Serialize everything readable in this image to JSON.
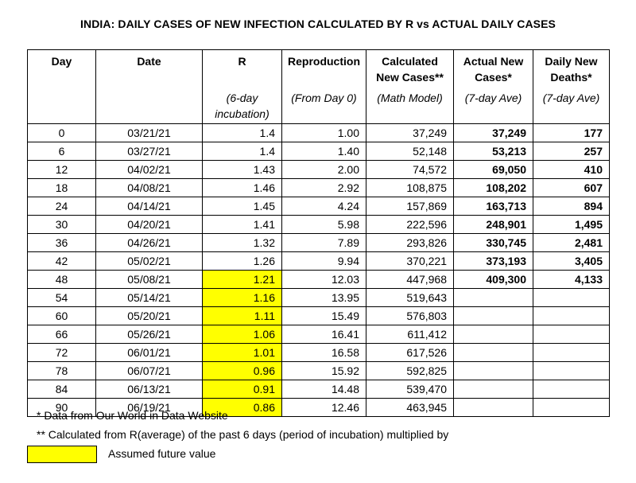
{
  "title": "INDIA: DAILY CASES OF NEW INFECTION CALCULATED BY R vs ACTUAL DAILY CASES",
  "headers": [
    {
      "top": "Day",
      "bottom": ""
    },
    {
      "top": "Date",
      "bottom": ""
    },
    {
      "top": "R",
      "bottom": "(6-day incubation)"
    },
    {
      "top": "Reproduction",
      "bottom": "(From Day 0)"
    },
    {
      "top": "Calculated New Cases**",
      "bottom": "(Math Model)"
    },
    {
      "top": "Actual New Cases*",
      "bottom": "(7-day Ave)"
    },
    {
      "top": "Daily New Deaths*",
      "bottom": "(7-day Ave)"
    }
  ],
  "rows": [
    {
      "day": "0",
      "date": "03/21/21",
      "r": "1.4",
      "repro": "1.00",
      "calc": "37,249",
      "actual": "37,249",
      "deaths": "177"
    },
    {
      "day": "6",
      "date": "03/27/21",
      "r": "1.4",
      "repro": "1.40",
      "calc": "52,148",
      "actual": "53,213",
      "deaths": "257"
    },
    {
      "day": "12",
      "date": "04/02/21",
      "r": "1.43",
      "repro": "2.00",
      "calc": "74,572",
      "actual": "69,050",
      "deaths": "410"
    },
    {
      "day": "18",
      "date": "04/08/21",
      "r": "1.46",
      "repro": "2.92",
      "calc": "108,875",
      "actual": "108,202",
      "deaths": "607"
    },
    {
      "day": "24",
      "date": "04/14/21",
      "r": "1.45",
      "repro": "4.24",
      "calc": "157,869",
      "actual": "163,713",
      "deaths": "894"
    },
    {
      "day": "30",
      "date": "04/20/21",
      "r": "1.41",
      "repro": "5.98",
      "calc": "222,596",
      "actual": "248,901",
      "deaths": "1,495"
    },
    {
      "day": "36",
      "date": "04/26/21",
      "r": "1.32",
      "repro": "7.89",
      "calc": "293,826",
      "actual": "330,745",
      "deaths": "2,481"
    },
    {
      "day": "42",
      "date": "05/02/21",
      "r": "1.26",
      "repro": "9.94",
      "calc": "370,221",
      "actual": "373,193",
      "deaths": "3,405"
    },
    {
      "day": "48",
      "date": "05/08/21",
      "r": "1.21",
      "repro": "12.03",
      "calc": "447,968",
      "actual": "409,300",
      "deaths": "4,133"
    },
    {
      "day": "54",
      "date": "05/14/21",
      "r": "1.16",
      "repro": "13.95",
      "calc": "519,643",
      "actual": "",
      "deaths": ""
    },
    {
      "day": "60",
      "date": "05/20/21",
      "r": "1.11",
      "repro": "15.49",
      "calc": "576,803",
      "actual": "",
      "deaths": ""
    },
    {
      "day": "66",
      "date": "05/26/21",
      "r": "1.06",
      "repro": "16.41",
      "calc": "611,412",
      "actual": "",
      "deaths": ""
    },
    {
      "day": "72",
      "date": "06/01/21",
      "r": "1.01",
      "repro": "16.58",
      "calc": "617,526",
      "actual": "",
      "deaths": ""
    },
    {
      "day": "78",
      "date": "06/07/21",
      "r": "0.96",
      "repro": "15.92",
      "calc": "592,825",
      "actual": "",
      "deaths": ""
    },
    {
      "day": "84",
      "date": "06/13/21",
      "r": "0.91",
      "repro": "14.48",
      "calc": "539,470",
      "actual": "",
      "deaths": ""
    },
    {
      "day": "90",
      "date": "06/19/21",
      "r": "0.86",
      "repro": "12.46",
      "calc": "463,945",
      "actual": "",
      "deaths": ""
    }
  ],
  "assumed_from_day": 48,
  "colors": {
    "highlight": "#ffff00"
  },
  "footnotes": {
    "note1": "* Data from Our World in Data Website",
    "note2": "** Calculated from R(average) of the past 6 days (period of incubation) multiplied by"
  },
  "legend": {
    "label": "Assumed future value"
  }
}
